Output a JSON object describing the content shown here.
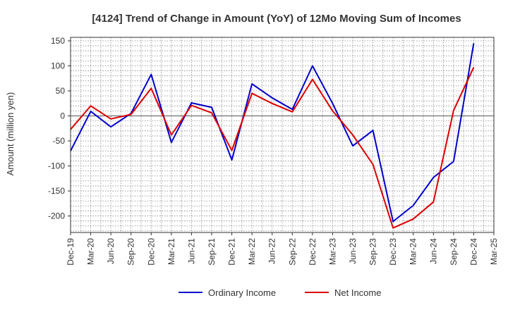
{
  "chart_data": {
    "type": "line",
    "title": "[4124]  Trend of Change in Amount (YoY) of 12Mo Moving Sum of Incomes",
    "xlabel": "",
    "ylabel": "Amount (million yen)",
    "ylim": [
      -233,
      157
    ],
    "yticks": [
      150,
      100,
      50,
      0,
      -50,
      -100,
      -150,
      -200
    ],
    "categories": [
      "Dec-19",
      "Mar-20",
      "Jun-20",
      "Sep-20",
      "Dec-20",
      "Mar-21",
      "Jun-21",
      "Sep-21",
      "Dec-21",
      "Mar-22",
      "Jun-22",
      "Sep-22",
      "Dec-22",
      "Mar-23",
      "Jun-23",
      "Sep-23",
      "Dec-23",
      "Mar-24",
      "Jun-24",
      "Sep-24",
      "Dec-24",
      "Mar-25"
    ],
    "grid": true,
    "legend_position": "bottom",
    "series": [
      {
        "name": "Ordinary Income",
        "color": "#0000cc",
        "values": [
          -70,
          9,
          -22,
          5,
          83,
          -53,
          26,
          17,
          -88,
          64,
          36,
          13,
          100,
          25,
          -60,
          -29,
          -211,
          -179,
          -123,
          -91,
          145,
          null
        ]
      },
      {
        "name": "Net Income",
        "color": "#dd0000",
        "values": [
          -27,
          20,
          -6,
          3,
          55,
          -38,
          21,
          6,
          -69,
          45,
          25,
          8,
          73,
          10,
          -38,
          -97,
          -224,
          -206,
          -172,
          11,
          97,
          null
        ]
      }
    ]
  }
}
